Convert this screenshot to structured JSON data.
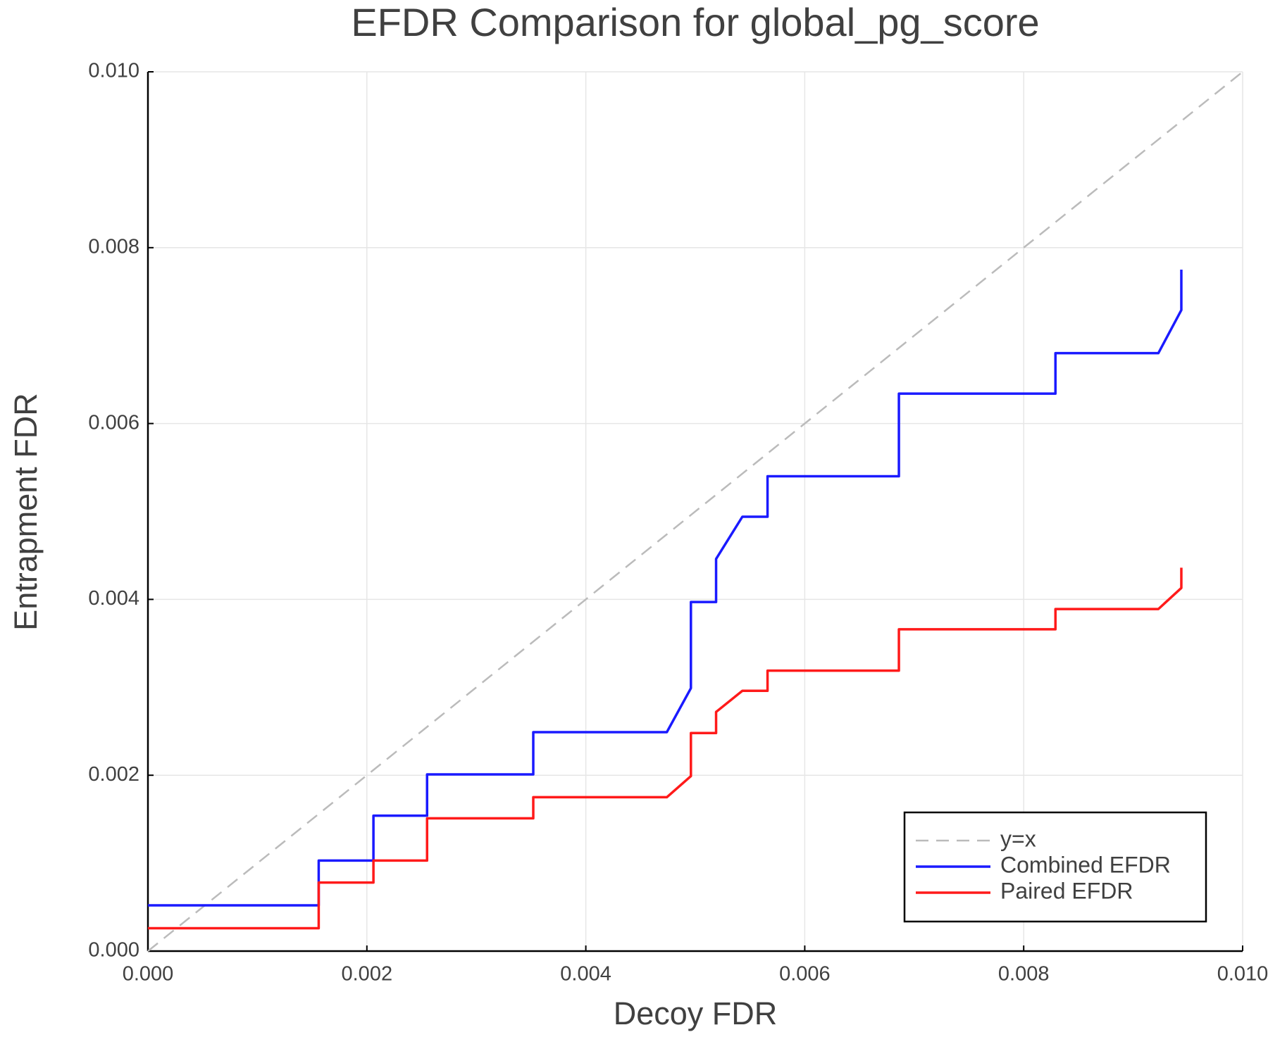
{
  "chart_data": {
    "type": "line",
    "title": "EFDR Comparison for global_pg_score",
    "x_label": "Decoy FDR",
    "y_label": "Entrapment FDR",
    "xlim": [
      0,
      0.01
    ],
    "ylim": [
      0,
      0.01
    ],
    "xticks": [
      {
        "value": 0,
        "label": "0.000"
      },
      {
        "value": 0.002,
        "label": "0.002"
      },
      {
        "value": 0.004,
        "label": "0.004"
      },
      {
        "value": 0.006,
        "label": "0.006"
      },
      {
        "value": 0.008,
        "label": "0.008"
      },
      {
        "value": 0.01,
        "label": "0.010"
      }
    ],
    "yticks": [
      {
        "value": 0,
        "label": "0.000"
      },
      {
        "value": 0.002,
        "label": "0.002"
      },
      {
        "value": 0.004,
        "label": "0.004"
      },
      {
        "value": 0.006,
        "label": "0.006"
      },
      {
        "value": 0.008,
        "label": "0.008"
      },
      {
        "value": 0.01,
        "label": "0.010"
      }
    ],
    "grid": true,
    "legend": "bottom right",
    "series": [
      {
        "name": "y=x",
        "color": "#bbbbbb",
        "dashed": true,
        "x": [
          0,
          0.01
        ],
        "values": [
          0,
          0.01
        ]
      },
      {
        "name": "Combined EFDR",
        "color": "#1a1aff",
        "dashed": false,
        "x": [
          0,
          0.00156,
          0.00156,
          0.00206,
          0.00206,
          0.00255,
          0.00255,
          0.00352,
          0.00352,
          0.00474,
          0.00496,
          0.00496,
          0.00519,
          0.00519,
          0.00543,
          0.00566,
          0.00566,
          0.00686,
          0.00686,
          0.00829,
          0.00829,
          0.00923,
          0.00944,
          0.00944
        ],
        "values": [
          0.00052,
          0.00052,
          0.00103,
          0.00103,
          0.00154,
          0.00154,
          0.00201,
          0.00201,
          0.00249,
          0.00249,
          0.00299,
          0.00397,
          0.00397,
          0.00446,
          0.00494,
          0.00494,
          0.0054,
          0.0054,
          0.00634,
          0.00634,
          0.0068,
          0.0068,
          0.00729,
          0.00775
        ]
      },
      {
        "name": "Paired EFDR",
        "color": "#ff1a1a",
        "dashed": false,
        "x": [
          0,
          0.00156,
          0.00156,
          0.00206,
          0.00206,
          0.00255,
          0.00255,
          0.00352,
          0.00352,
          0.00474,
          0.00496,
          0.00496,
          0.00519,
          0.00519,
          0.00543,
          0.00566,
          0.00566,
          0.00686,
          0.00686,
          0.00829,
          0.00829,
          0.00923,
          0.00944,
          0.00944
        ],
        "values": [
          0.00026,
          0.00026,
          0.00078,
          0.00078,
          0.00103,
          0.00103,
          0.00151,
          0.00151,
          0.00175,
          0.00175,
          0.00199,
          0.00248,
          0.00248,
          0.00272,
          0.00296,
          0.00296,
          0.00319,
          0.00319,
          0.00366,
          0.00366,
          0.00389,
          0.00389,
          0.00413,
          0.00436
        ]
      }
    ]
  }
}
